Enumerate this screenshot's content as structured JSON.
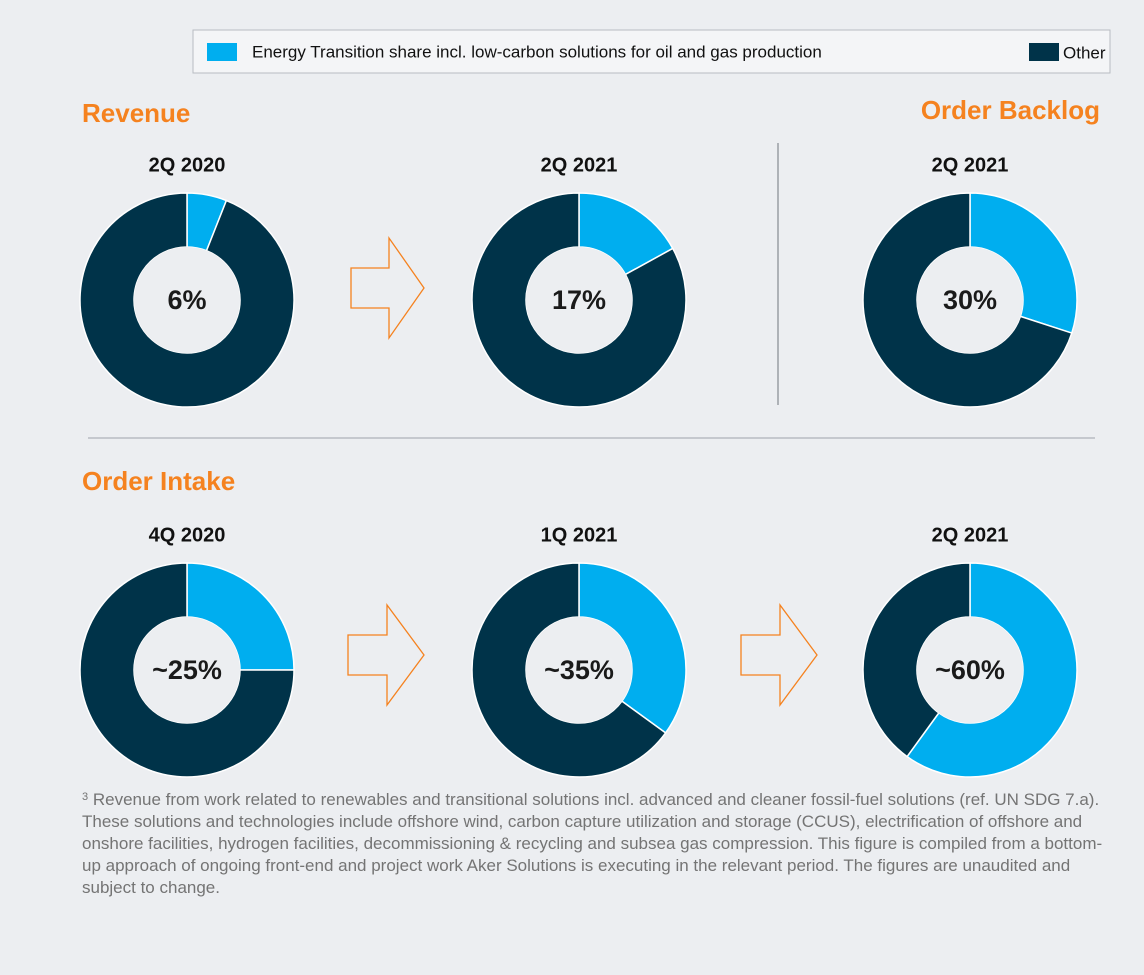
{
  "legend": {
    "entries": [
      {
        "name": "Energy Transition share incl. low-carbon solutions for oil and gas production",
        "color": "#00aeef"
      },
      {
        "name": "Other",
        "color": "#003349"
      }
    ]
  },
  "sections": [
    "Revenue",
    "Order Backlog",
    "Order Intake"
  ],
  "chart_data": [
    {
      "type": "donut",
      "title": "2Q 2020",
      "values": [
        6,
        94
      ],
      "center_label": "6%"
    },
    {
      "type": "donut",
      "title": "2Q 2021",
      "values": [
        17,
        83
      ],
      "center_label": "17%"
    },
    {
      "type": "donut",
      "title": "2Q 2021",
      "values": [
        30,
        70
      ],
      "center_label": "30%"
    },
    {
      "type": "donut",
      "title": "4Q 2020",
      "values": [
        25,
        75
      ],
      "center_label": "~25%"
    },
    {
      "type": "donut",
      "title": "1Q 2021",
      "values": [
        35,
        65
      ],
      "center_label": "~35%"
    },
    {
      "type": "donut",
      "title": "2Q 2021",
      "values": [
        60,
        40
      ],
      "center_label": "~60%"
    }
  ],
  "footnote": {
    "marker": "3",
    "text": "Revenue from work related to renewables and transitional solutions incl. advanced and cleaner fossil-fuel solutions (ref. UN SDG 7.a). These solutions and technologies include offshore wind, carbon capture utilization and storage (CCUS), electrification of offshore and onshore facilities, hydrogen facilities, decommissioning & recycling and subsea gas compression. This figure is compiled from a bottom-up approach of ongoing front-end and project work Aker Solutions is executing in the relevant period. The figures are unaudited and subject to change."
  }
}
